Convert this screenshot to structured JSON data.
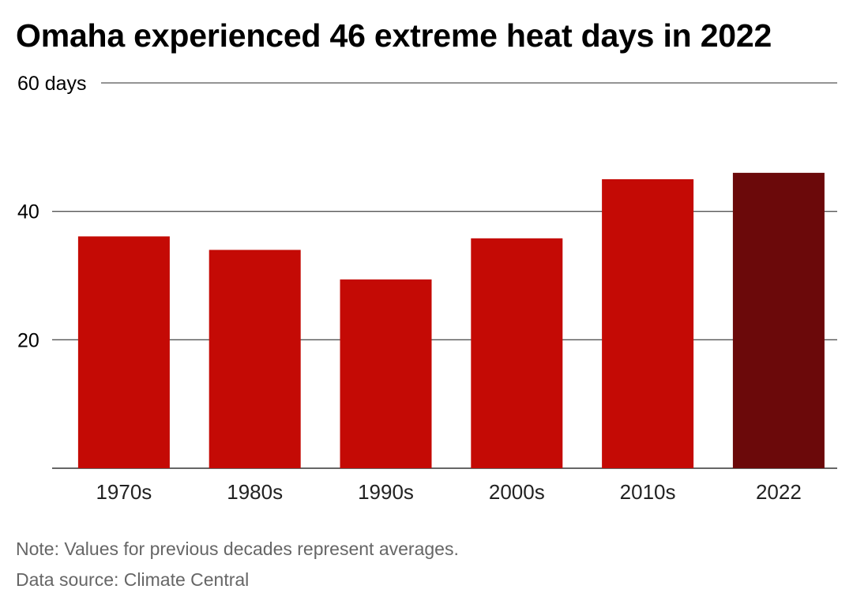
{
  "title": "Omaha experienced 46 extreme heat days in 2022",
  "note": "Note: Values for previous decades represent averages.",
  "source": "Data source: Climate Central",
  "colors": {
    "bar": "#c40a05",
    "highlight": "#6b090a",
    "grid": "#555555",
    "axis": "#333333",
    "footer": "#666666"
  },
  "chart_data": {
    "type": "bar",
    "title": "Omaha experienced 46 extreme heat days in 2022",
    "xlabel": "",
    "ylabel": "",
    "categories": [
      "1970s",
      "1980s",
      "1990s",
      "2000s",
      "2010s",
      "2022"
    ],
    "values": [
      36.1,
      34.0,
      29.4,
      35.8,
      45.0,
      46.0
    ],
    "highlight_index": 5,
    "ylim": [
      0,
      60
    ],
    "yticks": [
      20,
      40,
      60
    ],
    "ytick_labels": [
      "20",
      "40",
      "60 days"
    ],
    "grid": true,
    "legend": "none"
  }
}
